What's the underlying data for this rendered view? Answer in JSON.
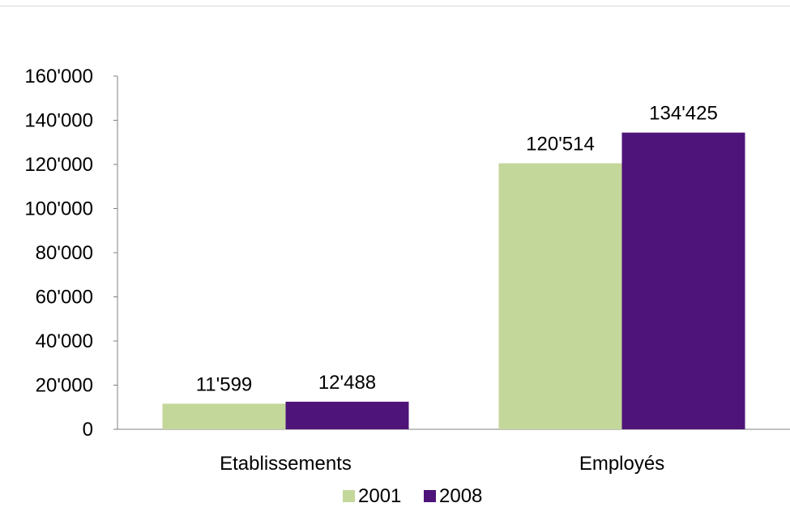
{
  "chart_data": {
    "type": "bar",
    "title": "",
    "xlabel": "",
    "ylabel": "",
    "categories": [
      "Etablissements",
      "Employés"
    ],
    "series": [
      {
        "name": "2001",
        "color": "#c4d79b",
        "values": [
          11599,
          120514
        ],
        "labels": [
          "11'599",
          "120'514"
        ]
      },
      {
        "name": "2008",
        "color": "#4f1479",
        "values": [
          12488,
          134425
        ],
        "labels": [
          "12'488",
          "134'425"
        ]
      }
    ],
    "ylim": [
      0,
      160000
    ],
    "yticks": [
      0,
      20000,
      40000,
      60000,
      80000,
      100000,
      120000,
      140000,
      160000
    ],
    "ytick_labels": [
      "0",
      "20'000",
      "40'000",
      "60'000",
      "80'000",
      "100'000",
      "120'000",
      "140'000",
      "160'000"
    ],
    "grid": false,
    "legend_position": "bottom-center"
  }
}
